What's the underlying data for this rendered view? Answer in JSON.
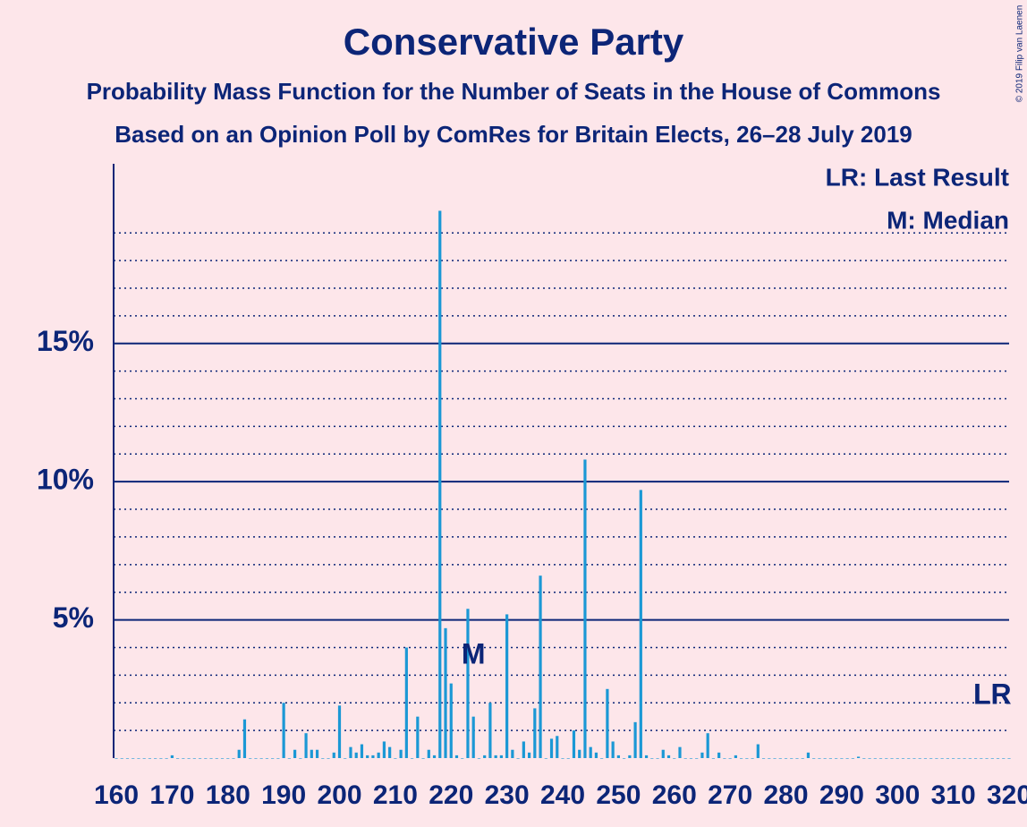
{
  "chart_data": {
    "type": "bar",
    "title": "Conservative Party",
    "subtitle": "Probability Mass Function for the Number of Seats in the House of Commons",
    "subtitle2": "Based on an Opinion Poll by ComRes for Britain Elects, 26–28 July 2019",
    "legend": [
      "LR: Last Result",
      "M: Median"
    ],
    "copyright": "© 2019 Filip van Laenen",
    "annotations": [
      {
        "text": "M",
        "x": 224
      },
      {
        "text": "LR",
        "x": 317
      }
    ],
    "color": "#1b98d5",
    "x": [
      160,
      161,
      162,
      163,
      164,
      165,
      166,
      167,
      168,
      169,
      170,
      171,
      172,
      173,
      174,
      175,
      176,
      177,
      178,
      179,
      180,
      181,
      182,
      183,
      184,
      185,
      186,
      187,
      188,
      189,
      190,
      191,
      192,
      193,
      194,
      195,
      196,
      197,
      198,
      199,
      200,
      201,
      202,
      203,
      204,
      205,
      206,
      207,
      208,
      209,
      210,
      211,
      212,
      213,
      214,
      215,
      216,
      217,
      218,
      219,
      220,
      221,
      222,
      223,
      224,
      225,
      226,
      227,
      228,
      229,
      230,
      231,
      232,
      233,
      234,
      235,
      236,
      237,
      238,
      239,
      240,
      241,
      242,
      243,
      244,
      245,
      246,
      247,
      248,
      249,
      250,
      251,
      252,
      253,
      254,
      255,
      256,
      257,
      258,
      259,
      260,
      261,
      262,
      263,
      264,
      265,
      266,
      267,
      268,
      269,
      270,
      271,
      272,
      273,
      274,
      275,
      276,
      277,
      278,
      279,
      280,
      281,
      282,
      283,
      284,
      285,
      286,
      287,
      288,
      289,
      290,
      291,
      292,
      293,
      294,
      295,
      296,
      297,
      298,
      299,
      300,
      301,
      302,
      303,
      304,
      305,
      306,
      307,
      308,
      309,
      310,
      311,
      312,
      313,
      314,
      315,
      316,
      317,
      318,
      319,
      320
    ],
    "values": [
      0,
      0,
      0,
      0,
      0,
      0,
      0,
      0,
      0,
      0,
      0.1,
      0,
      0,
      0,
      0,
      0,
      0,
      0,
      0,
      0,
      0,
      0,
      0.3,
      1.4,
      0,
      0,
      0,
      0,
      0,
      0,
      2.0,
      0,
      0.3,
      0,
      0.9,
      0.3,
      0.3,
      0,
      0,
      0.2,
      1.9,
      0,
      0.4,
      0.2,
      0.5,
      0.1,
      0.1,
      0.2,
      0.6,
      0.4,
      0,
      0.3,
      4.0,
      0,
      1.5,
      0,
      0.3,
      0.1,
      19.8,
      4.7,
      2.7,
      0.1,
      0,
      5.4,
      1.5,
      0,
      0.1,
      2.0,
      0.1,
      0.1,
      5.2,
      0.3,
      0,
      0.6,
      0.2,
      1.8,
      6.6,
      0,
      0.7,
      0.8,
      0,
      0,
      1.0,
      0.3,
      10.8,
      0.4,
      0.2,
      0,
      2.5,
      0.6,
      0.1,
      0,
      0.1,
      1.3,
      9.7,
      0.1,
      0,
      0,
      0.3,
      0.1,
      0,
      0.4,
      0,
      0,
      0,
      0.2,
      0.9,
      0,
      0.2,
      0,
      0,
      0.1,
      0,
      0,
      0,
      0.5,
      0,
      0,
      0,
      0,
      0,
      0,
      0,
      0,
      0.2,
      0,
      0,
      0,
      0,
      0,
      0,
      0,
      0,
      0.05,
      0,
      0,
      0,
      0,
      0,
      0,
      0,
      0,
      0,
      0,
      0,
      0,
      0,
      0,
      0,
      0,
      0,
      0,
      0,
      0,
      0,
      0,
      0,
      0,
      0,
      0,
      0
    ],
    "xlim": [
      160,
      320
    ],
    "xticks": [
      160,
      170,
      180,
      190,
      200,
      210,
      220,
      230,
      240,
      250,
      260,
      270,
      280,
      290,
      300,
      310,
      320
    ],
    "ylim": [
      0,
      21.5
    ],
    "yticks": [
      {
        "value": 5,
        "label": "5%"
      },
      {
        "value": 10,
        "label": "10%"
      },
      {
        "value": 15,
        "label": "15%"
      }
    ],
    "minor_yticks": [
      1,
      2,
      3,
      4,
      6,
      7,
      8,
      9,
      11,
      12,
      13,
      14,
      16,
      17,
      18,
      19
    ],
    "grid": true
  }
}
